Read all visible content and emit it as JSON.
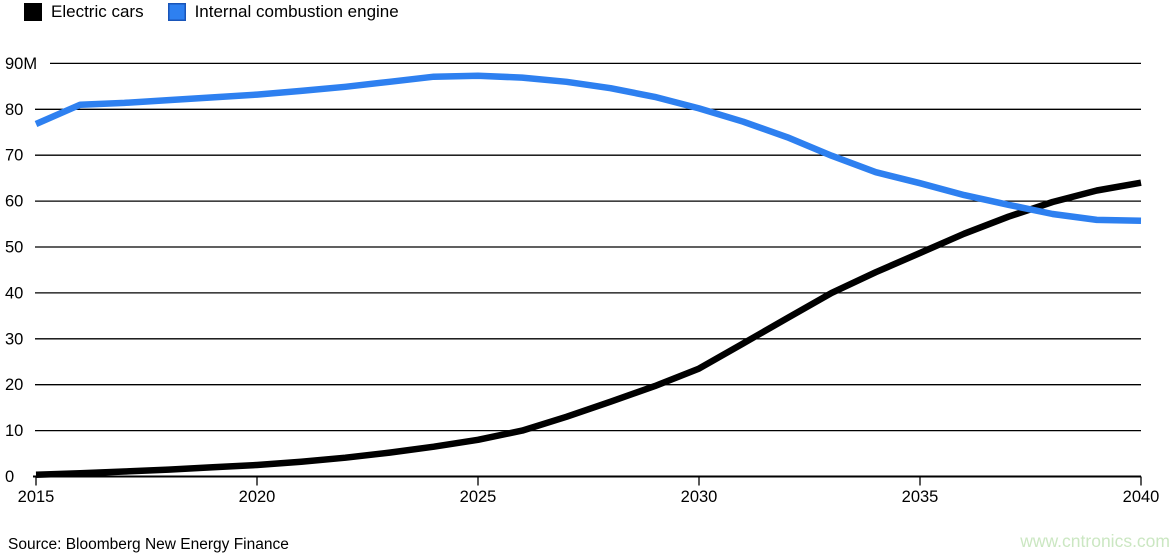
{
  "legend": {
    "items": [
      {
        "label": "Electric cars",
        "color": "#000000"
      },
      {
        "label": "Internal combustion engine",
        "color": "#2e80f0"
      }
    ]
  },
  "footer": {
    "source": "Source: Bloomberg New Energy Finance",
    "watermark": "www.cntronics.com",
    "watermark_color": "#cbe7c2"
  },
  "chart_data": {
    "type": "line",
    "title": "",
    "xlabel": "",
    "ylabel": "",
    "x": [
      2015,
      2016,
      2017,
      2018,
      2019,
      2020,
      2021,
      2022,
      2023,
      2024,
      2025,
      2026,
      2027,
      2028,
      2029,
      2030,
      2031,
      2032,
      2033,
      2034,
      2035,
      2036,
      2037,
      2038,
      2039,
      2040
    ],
    "series": [
      {
        "name": "Electric cars",
        "color": "#000000",
        "values": [
          0.4,
          0.7,
          1.1,
          1.5,
          2.0,
          2.5,
          3.2,
          4.1,
          5.2,
          6.5,
          8.0,
          10.0,
          13.0,
          16.3,
          19.7,
          23.5,
          29.0,
          34.5,
          40.0,
          44.5,
          48.7,
          52.9,
          56.6,
          59.8,
          62.3,
          64.0
        ]
      },
      {
        "name": "Internal combustion engine",
        "color": "#2e80f0",
        "values": [
          76.8,
          81.0,
          81.4,
          82.0,
          82.6,
          83.2,
          84.0,
          84.9,
          86.0,
          87.1,
          87.3,
          86.9,
          86.0,
          84.6,
          82.7,
          80.2,
          77.3,
          73.9,
          69.9,
          66.3,
          63.9,
          61.3,
          59.2,
          57.2,
          55.9,
          55.7
        ]
      }
    ],
    "xlim": [
      2015,
      2040
    ],
    "ylim": [
      0,
      90
    ],
    "xticks": [
      2015,
      2020,
      2025,
      2030,
      2035,
      2040
    ],
    "xtick_labels": [
      "2015",
      "2020",
      "2025",
      "2030",
      "2035",
      "2040"
    ],
    "yticks": [
      0,
      10,
      20,
      30,
      40,
      50,
      60,
      70,
      80,
      90
    ],
    "ytick_labels": [
      "0",
      "10",
      "20",
      "30",
      "40",
      "50",
      "60",
      "70",
      "80",
      "90M"
    ],
    "grid": "horizontal",
    "legend_position": "top-left",
    "line_width": 6.5
  }
}
